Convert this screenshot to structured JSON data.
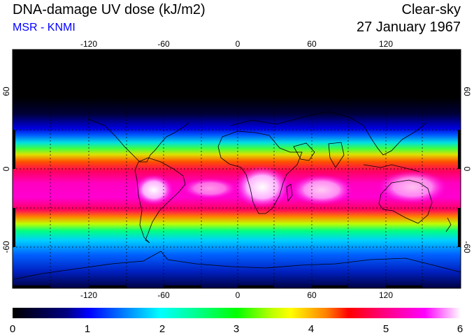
{
  "header": {
    "title": "DNA-damage UV dose (kJ/m2)",
    "subtitle": "MSR - KNMI",
    "sky_condition": "Clear-sky",
    "date": "27 January 1967"
  },
  "map": {
    "projection": "equirectangular",
    "lon_ticks": [
      "-120",
      "-60",
      "0",
      "60",
      "120"
    ],
    "lat_ticks": [
      "60",
      "0",
      "-60"
    ],
    "graticule": "dashed",
    "coastlines": "black"
  },
  "colorbar": {
    "min": 0,
    "max": 6,
    "tick_labels": [
      "0",
      "1",
      "2",
      "3",
      "4",
      "5",
      "6"
    ],
    "colors": [
      "#000000",
      "#0000ff",
      "#00ffff",
      "#00ff00",
      "#ffff00",
      "#ff0000",
      "#ff00ff",
      "#ffffff"
    ]
  }
}
